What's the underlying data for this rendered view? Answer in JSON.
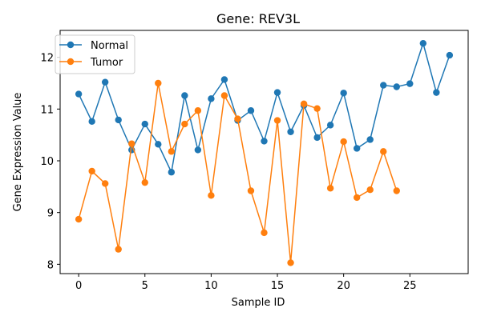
{
  "chart_data": {
    "type": "line",
    "title": "Gene: REV3L",
    "xlabel": "Sample ID",
    "ylabel": "Gene Expression Value",
    "xlim": [
      -1.4,
      29.4
    ],
    "ylim": [
      7.82,
      12.52
    ],
    "xticks": [
      0,
      5,
      10,
      15,
      20,
      25
    ],
    "yticks": [
      8,
      9,
      10,
      11,
      12
    ],
    "grid": false,
    "legend_position": "top-left",
    "series": [
      {
        "name": "Normal",
        "color": "#1f77b4",
        "x": [
          0,
          1,
          2,
          3,
          4,
          5,
          6,
          7,
          8,
          9,
          10,
          11,
          12,
          13,
          14,
          15,
          16,
          17,
          18,
          19,
          20,
          21,
          22,
          23,
          24,
          25,
          26,
          27,
          28
        ],
        "values": [
          11.29,
          10.76,
          11.52,
          10.79,
          10.21,
          10.71,
          10.32,
          9.78,
          11.26,
          10.21,
          11.2,
          11.57,
          10.78,
          10.97,
          10.38,
          11.32,
          10.56,
          11.07,
          10.45,
          10.69,
          11.31,
          10.24,
          10.41,
          11.46,
          11.43,
          11.49,
          12.27,
          11.32,
          12.04
        ]
      },
      {
        "name": "Tumor",
        "color": "#ff7f0e",
        "x": [
          0,
          1,
          2,
          3,
          4,
          5,
          6,
          7,
          8,
          9,
          10,
          11,
          12,
          13,
          14,
          15,
          16,
          17,
          18,
          19,
          20,
          21,
          22,
          23,
          24
        ],
        "values": [
          8.87,
          9.8,
          9.56,
          8.29,
          10.33,
          9.58,
          11.5,
          10.18,
          10.71,
          10.97,
          9.33,
          11.26,
          10.81,
          9.42,
          8.61,
          10.78,
          8.03,
          11.1,
          11.01,
          9.47,
          10.37,
          9.29,
          9.44,
          10.18,
          9.42
        ]
      }
    ]
  }
}
